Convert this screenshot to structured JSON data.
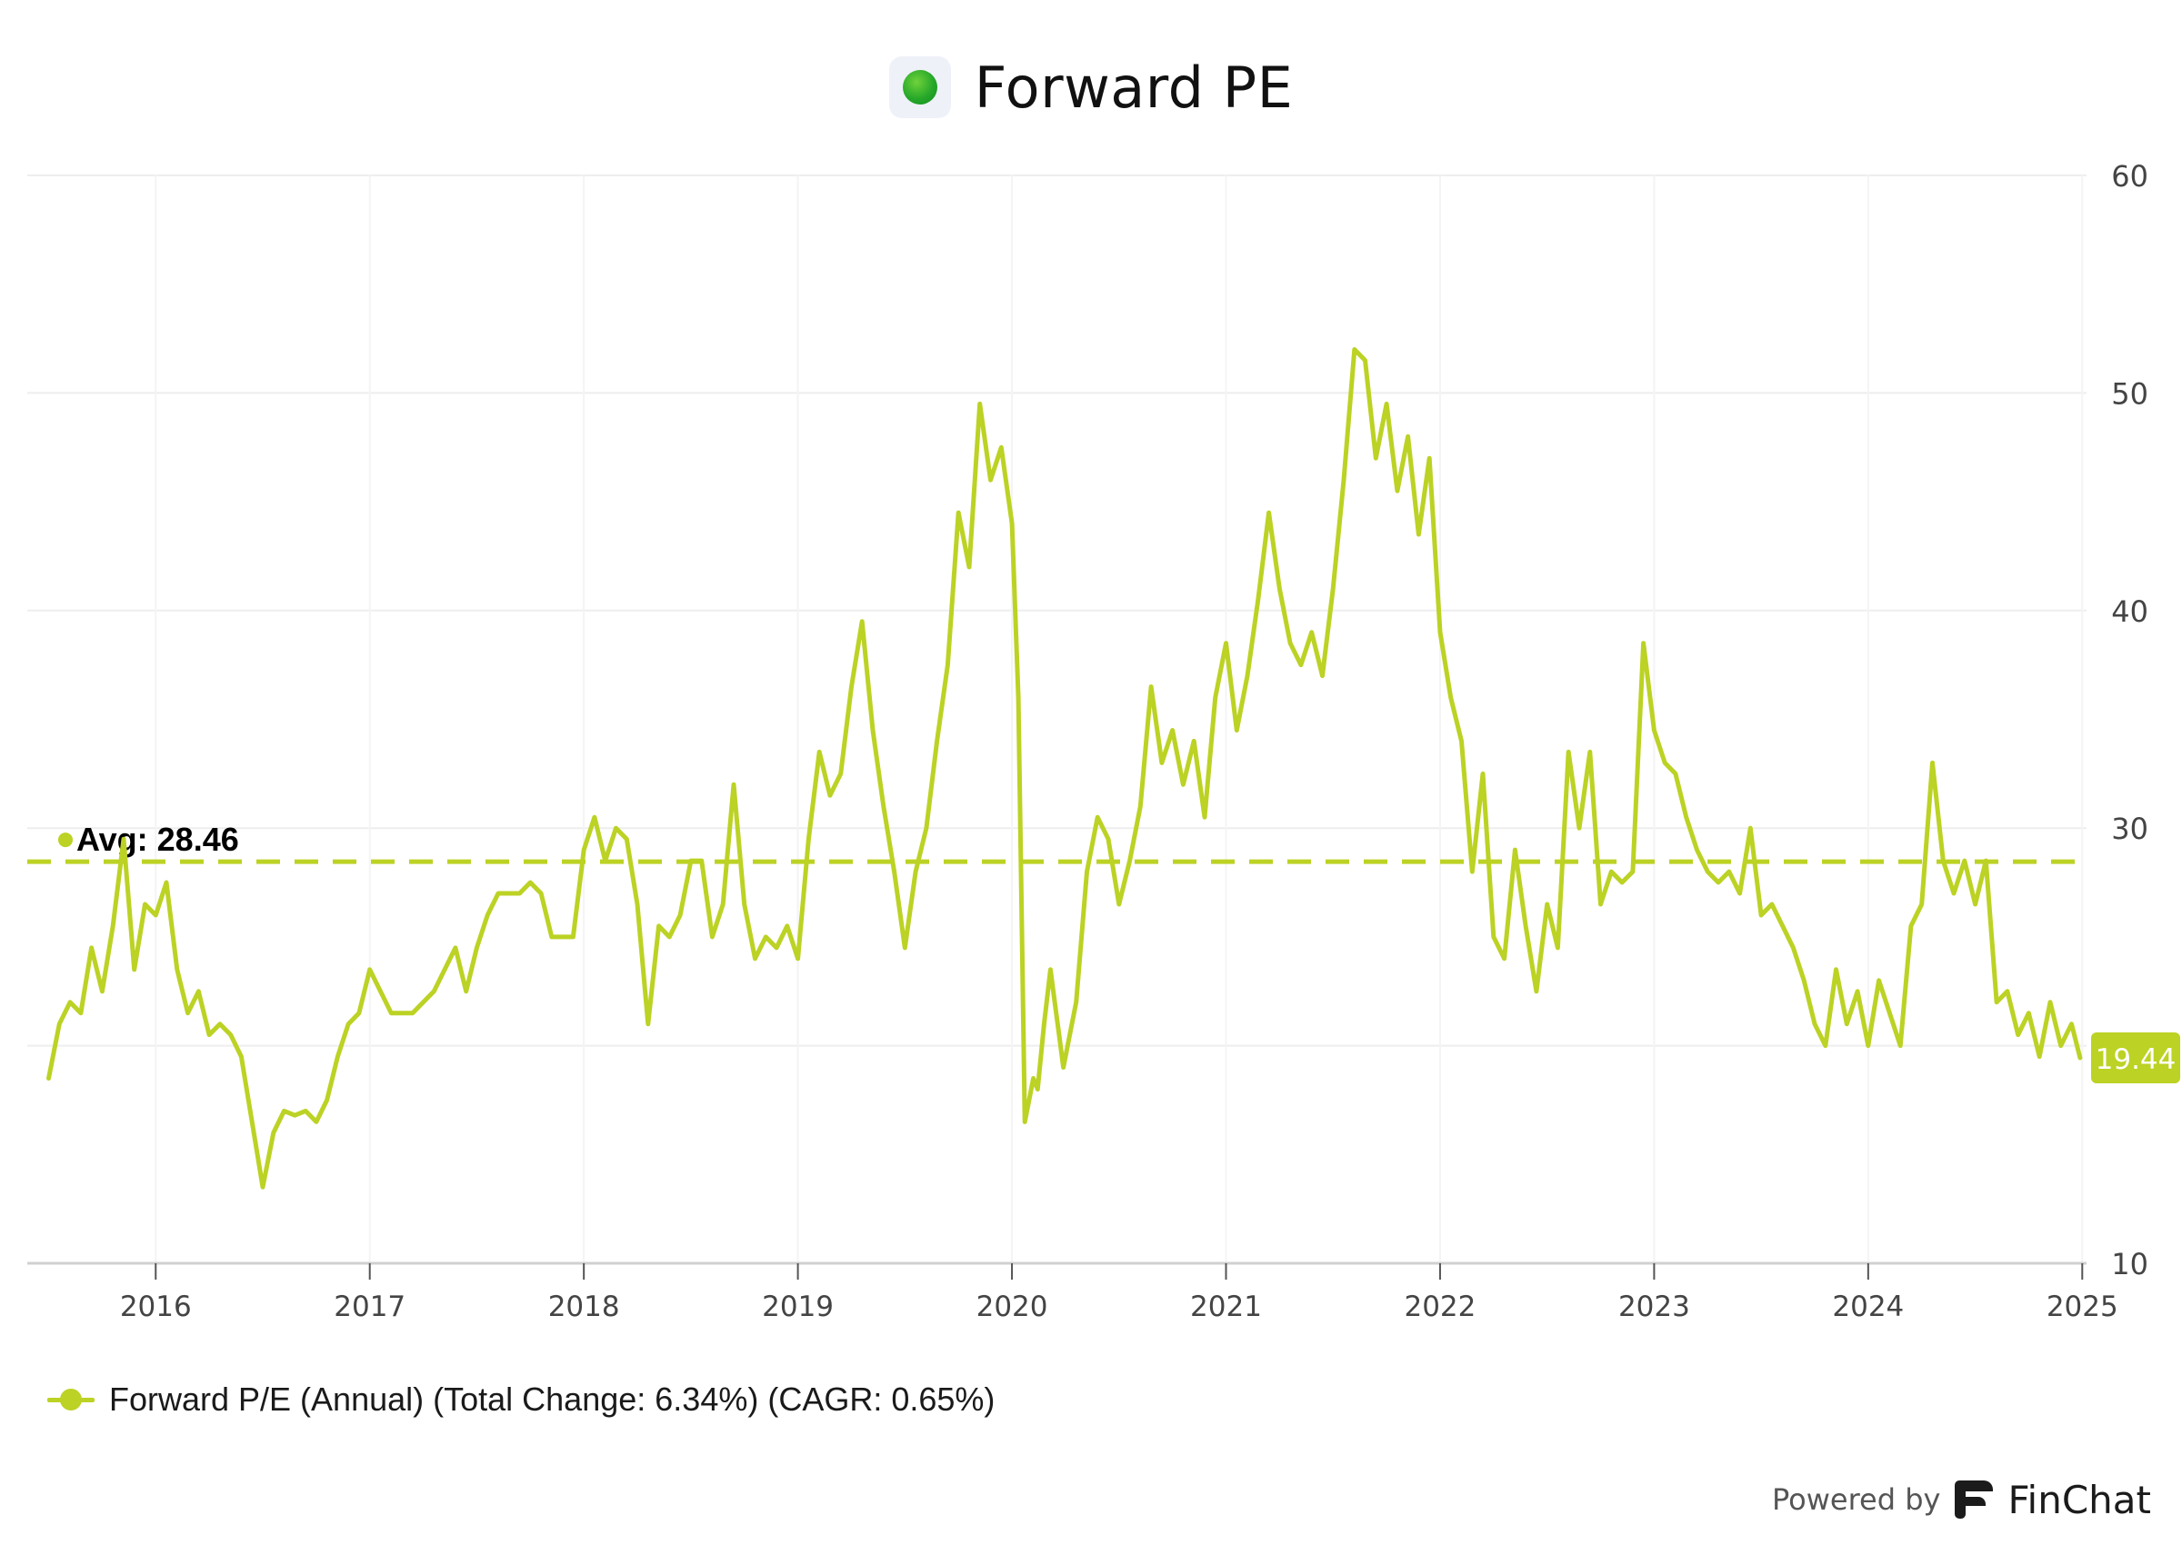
{
  "title": "Forward PE",
  "title_icon": "green-dot-icon",
  "legend": {
    "label": "Forward P/E (Annual) (Total Change: 6.34%) (CAGR: 0.65%)"
  },
  "footer": {
    "powered_by": "Powered by",
    "brand": "FinChat",
    "brand_icon": "finchat-logo-icon"
  },
  "colors": {
    "series": "#bcd224",
    "grid": "#eeeeee",
    "axis_text": "#444444"
  },
  "chart_data": {
    "type": "line",
    "title": "Forward PE",
    "xlabel": "",
    "ylabel": "",
    "ylim": [
      10,
      60
    ],
    "yticks": [
      10,
      20,
      30,
      40,
      50,
      60
    ],
    "y_axis_position": "right",
    "xlim": [
      2015.4,
      2025.02
    ],
    "x_tick_labels": [
      "2016",
      "2017",
      "2018",
      "2019",
      "2020",
      "2021",
      "2022",
      "2023",
      "2024",
      "2025"
    ],
    "grid": true,
    "legend_position": "bottom-left",
    "average": {
      "value": 28.46,
      "label": "Avg: 28.46"
    },
    "last_value": {
      "value": 19.44,
      "label": "19.44"
    },
    "series": [
      {
        "name": "Forward P/E (Annual)",
        "x": [
          2015.5,
          2015.55,
          2015.6,
          2015.65,
          2015.7,
          2015.75,
          2015.8,
          2015.85,
          2015.9,
          2015.95,
          2016.0,
          2016.05,
          2016.1,
          2016.15,
          2016.2,
          2016.25,
          2016.3,
          2016.35,
          2016.4,
          2016.45,
          2016.5,
          2016.55,
          2016.6,
          2016.65,
          2016.7,
          2016.75,
          2016.8,
          2016.85,
          2016.9,
          2016.95,
          2017.0,
          2017.1,
          2017.2,
          2017.3,
          2017.4,
          2017.45,
          2017.5,
          2017.55,
          2017.6,
          2017.7,
          2017.75,
          2017.8,
          2017.85,
          2017.9,
          2017.95,
          2018.0,
          2018.05,
          2018.1,
          2018.15,
          2018.2,
          2018.25,
          2018.3,
          2018.35,
          2018.4,
          2018.45,
          2018.5,
          2018.55,
          2018.6,
          2018.65,
          2018.7,
          2018.75,
          2018.8,
          2018.85,
          2018.9,
          2018.95,
          2019.0,
          2019.05,
          2019.1,
          2019.15,
          2019.2,
          2019.25,
          2019.3,
          2019.35,
          2019.4,
          2019.45,
          2019.5,
          2019.55,
          2019.6,
          2019.65,
          2019.7,
          2019.75,
          2019.8,
          2019.85,
          2019.9,
          2019.95,
          2020.0,
          2020.03,
          2020.06,
          2020.1,
          2020.12,
          2020.15,
          2020.18,
          2020.2,
          2020.22,
          2020.24,
          2020.26,
          2020.3,
          2020.35,
          2020.4,
          2020.45,
          2020.5,
          2020.55,
          2020.6,
          2020.65,
          2020.7,
          2020.75,
          2020.8,
          2020.85,
          2020.9,
          2020.95,
          2021.0,
          2021.05,
          2021.1,
          2021.15,
          2021.2,
          2021.25,
          2021.3,
          2021.35,
          2021.4,
          2021.45,
          2021.5,
          2021.55,
          2021.6,
          2021.65,
          2021.7,
          2021.75,
          2021.8,
          2021.85,
          2021.9,
          2021.95,
          2022.0,
          2022.05,
          2022.1,
          2022.15,
          2022.2,
          2022.25,
          2022.3,
          2022.35,
          2022.4,
          2022.45,
          2022.5,
          2022.55,
          2022.6,
          2022.65,
          2022.7,
          2022.75,
          2022.8,
          2022.85,
          2022.9,
          2022.95,
          2023.0,
          2023.05,
          2023.1,
          2023.15,
          2023.2,
          2023.25,
          2023.3,
          2023.35,
          2023.4,
          2023.45,
          2023.5,
          2023.55,
          2023.6,
          2023.65,
          2023.7,
          2023.75,
          2023.8,
          2023.85,
          2023.9,
          2023.95,
          2024.0,
          2024.05,
          2024.1,
          2024.15,
          2024.2,
          2024.25,
          2024.3,
          2024.35,
          2024.4,
          2024.45,
          2024.5,
          2024.55,
          2024.6,
          2024.65,
          2024.7,
          2024.75,
          2024.8,
          2024.85,
          2024.9,
          2024.95,
          2024.99
        ],
        "values": [
          18.5,
          21.0,
          22.0,
          21.5,
          24.5,
          22.5,
          25.5,
          29.5,
          23.5,
          26.5,
          26.0,
          27.5,
          23.5,
          21.5,
          22.5,
          20.5,
          21.0,
          20.5,
          19.5,
          16.5,
          13.5,
          16.0,
          17.0,
          16.8,
          17.0,
          16.5,
          17.5,
          19.5,
          21.0,
          21.5,
          23.5,
          21.5,
          21.5,
          22.5,
          24.5,
          22.5,
          24.5,
          26.0,
          27.0,
          27.0,
          27.5,
          27.0,
          25.0,
          25.0,
          25.0,
          29.0,
          30.5,
          28.5,
          30.0,
          29.5,
          26.5,
          21.0,
          25.5,
          25.0,
          26.0,
          28.5,
          28.5,
          25.0,
          26.5,
          32.0,
          26.5,
          24.0,
          25.0,
          24.5,
          25.5,
          24.0,
          29.5,
          33.5,
          31.5,
          32.5,
          36.5,
          39.5,
          34.5,
          31.0,
          28.0,
          24.5,
          28.0,
          30.0,
          34.0,
          37.5,
          44.5,
          42.0,
          49.5,
          46.0,
          47.5,
          44.0,
          36.0,
          16.5,
          18.5,
          18.0,
          21.0,
          23.5,
          22.0,
          20.5,
          19.0,
          20.0,
          22.0,
          28.0,
          30.5,
          29.5,
          26.5,
          28.5,
          31.0,
          36.5,
          33.0,
          34.5,
          32.0,
          34.0,
          30.5,
          36.0,
          38.5,
          34.5,
          37.0,
          40.5,
          44.5,
          41.0,
          38.5,
          37.5,
          39.0,
          37.0,
          41.0,
          46.0,
          52.0,
          51.5,
          47.0,
          49.5,
          45.5,
          48.0,
          43.5,
          47.0,
          39.0,
          36.0,
          34.0,
          28.0,
          32.5,
          25.0,
          24.0,
          29.0,
          25.5,
          22.5,
          26.5,
          24.5,
          33.5,
          30.0,
          33.5,
          26.5,
          28.0,
          27.5,
          28.0,
          38.5,
          34.5,
          33.0,
          32.5,
          30.5,
          29.0,
          28.0,
          27.5,
          28.0,
          27.0,
          30.0,
          26.0,
          26.5,
          25.5,
          24.5,
          23.0,
          21.0,
          20.0,
          23.5,
          21.0,
          22.5,
          20.0,
          23.0,
          21.5,
          20.0,
          25.5,
          26.5,
          33.0,
          28.5,
          27.0,
          28.5,
          26.5,
          28.5,
          22.0,
          22.5,
          20.5,
          21.5,
          19.5,
          22.0,
          20.0,
          21.0,
          19.44
        ]
      }
    ]
  }
}
